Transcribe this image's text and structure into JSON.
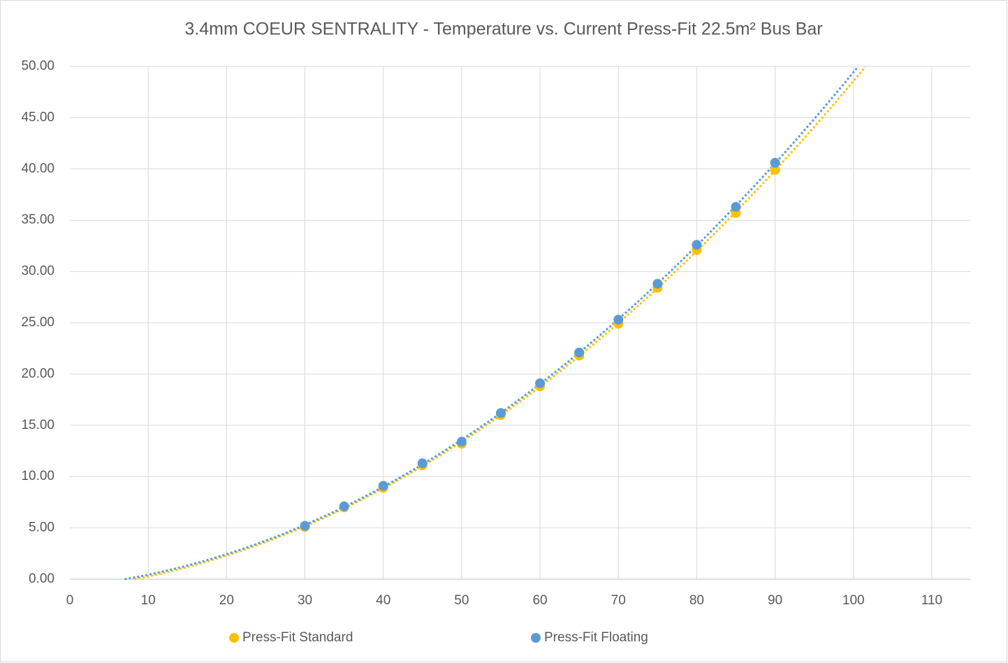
{
  "chart_data": {
    "type": "scatter",
    "title": "3.4mm COEUR SENTRALITY - Temperature vs. Current Press-Fit 22.5m² Bus Bar",
    "x": [
      30,
      35,
      40,
      45,
      50,
      55,
      60,
      65,
      70,
      75,
      80,
      85,
      90
    ],
    "series": [
      {
        "name": "Press-Fit Standard",
        "color": "#ffc000",
        "values": [
          5.1,
          7.0,
          8.9,
          11.1,
          13.2,
          16.0,
          18.8,
          21.8,
          24.9,
          28.4,
          32.1,
          35.7,
          39.9
        ]
      },
      {
        "name": "Press-Fit Floating",
        "color": "#5b9bd5",
        "values": [
          5.2,
          7.1,
          9.1,
          11.3,
          13.4,
          16.2,
          19.1,
          22.1,
          25.3,
          28.8,
          32.6,
          36.3,
          40.6
        ]
      }
    ],
    "trendline": "polynomial",
    "xlim": [
      0,
      115
    ],
    "xticks": [
      0,
      10,
      20,
      30,
      40,
      50,
      60,
      70,
      80,
      90,
      100,
      110
    ],
    "ylim": [
      0,
      50
    ],
    "yticks": [
      {
        "value": 0,
        "label": "0.00"
      },
      {
        "value": 5,
        "label": "5.00"
      },
      {
        "value": 10,
        "label": "10.00"
      },
      {
        "value": 15,
        "label": "15.00"
      },
      {
        "value": 20,
        "label": "20.00"
      },
      {
        "value": 25,
        "label": "25.00"
      },
      {
        "value": 30,
        "label": "30.00"
      },
      {
        "value": 35,
        "label": "35.00"
      },
      {
        "value": 40,
        "label": "40.00"
      },
      {
        "value": 45,
        "label": "45.00"
      },
      {
        "value": 50,
        "label": "50.00"
      }
    ],
    "grid": true,
    "legend": "bottom"
  }
}
